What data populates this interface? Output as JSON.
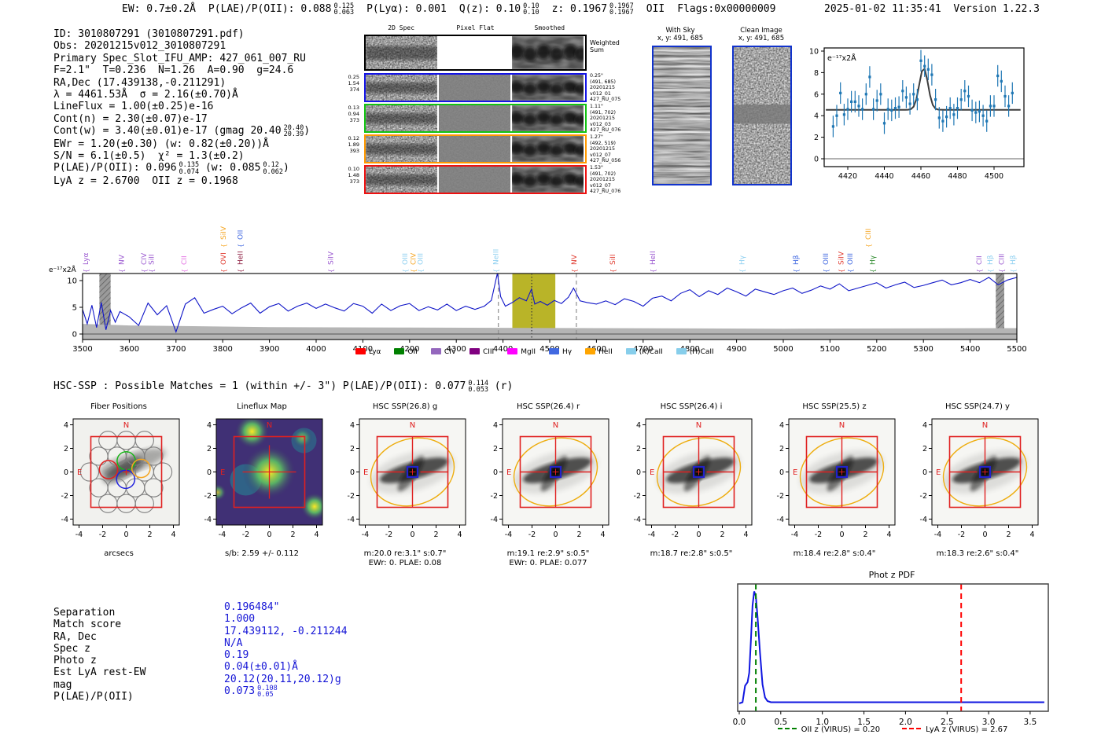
{
  "header": {
    "left_items": [
      {
        "t": "EW: 0.7±0.2Å"
      },
      {
        "t": "P(LAE)/P(OII): 0.088",
        "sup": "0.125",
        "sub": "0.063"
      },
      {
        "t": "P(Lyα): 0.001"
      },
      {
        "t": "Q(z): 0.10",
        "sup": "0.10",
        "sub": "0.10"
      },
      {
        "t": "z: 0.1967",
        "sup": "0.1967",
        "sub": "0.1967"
      },
      {
        "t": "OII"
      },
      {
        "t": "Flags:0x00000009"
      }
    ],
    "datetime": "2025-01-02 11:35:41",
    "version": "Version 1.22.3"
  },
  "info": {
    "lines": [
      [
        {
          "t": "ID: 3010807291 (3010807291.pdf)"
        }
      ],
      [
        {
          "t": "Obs: 20201215v012_3010807291"
        }
      ],
      [
        {
          "t": "Primary Spec_Slot_IFU_AMP: 427_061_007_RU"
        }
      ],
      [
        {
          "t": "F=2.1\"  T=0.236  N=1.26  A=0.90  g=24.6"
        }
      ],
      [
        {
          "t": "RA,Dec (17.439138,-0.211291)"
        }
      ],
      [
        {
          "t": "λ = 4461.53Å  σ = 2.16(±0.70)Å"
        }
      ],
      [
        {
          "t": "LineFlux = 1.00(±0.25)e-16"
        }
      ],
      [
        {
          "t": "Cont(n) = 2.30(±0.07)e-17"
        }
      ],
      [
        {
          "t": "Cont(w) = 3.40(±0.01)e-17 (gmag 20.40"
        },
        {
          "sup": "20.40",
          "sub": "20.39"
        },
        {
          "t": ")"
        }
      ],
      [
        {
          "t": "EWr = 1.20(±0.30) (w: 0.82(±0.20))Å"
        }
      ],
      [
        {
          "t": "S/N = 6.1(±0.5)  χ² = 1.3(±0.2)"
        }
      ],
      [
        {
          "t": "P(LAE)/P(OII): 0.096"
        },
        {
          "sup": "0.135",
          "sub": "0.074"
        },
        {
          "t": " (w: 0.085"
        },
        {
          "sup": "0.12",
          "sub": "0.062"
        },
        {
          "t": ")"
        }
      ],
      [
        {
          "t": "LyA z = 2.6700  OII z = 0.1968"
        }
      ]
    ]
  },
  "spec2d": {
    "col_headers": [
      "2D Spec",
      "Pixel Flat",
      "Smoothed"
    ],
    "weighted_label": "Weighted Sum",
    "rows": [
      {
        "color": "#1414e6",
        "left": [
          "0.25",
          "1.54",
          "374"
        ],
        "right": [
          "0.25\"",
          "(491, 685)",
          "20201215",
          "v012_01",
          "427_RU_075"
        ]
      },
      {
        "color": "#12c412",
        "left": [
          "0.13",
          "0.94",
          "373"
        ],
        "right": [
          "1.11\"",
          "(491, 702)",
          "20201215",
          "v012_03",
          "427_RU_076"
        ]
      },
      {
        "color": "#ff9900",
        "left": [
          "0.12",
          "1.89",
          "393"
        ],
        "right": [
          "1.27\"",
          "(492, 519)",
          "20201215",
          "v012_07",
          "427_RU_056"
        ]
      },
      {
        "color": "#ee1111",
        "left": [
          "0.10",
          "1.48",
          "373"
        ],
        "right": [
          "1.53\"",
          "(491, 702)",
          "20201215",
          "v012_07",
          "427_RU_076"
        ]
      }
    ]
  },
  "sky_panels": [
    {
      "title": "With Sky",
      "coords": "x, y: 491, 685"
    },
    {
      "title": "Clean Image",
      "coords": "x, y: 491, 685"
    }
  ],
  "hsc_match_line": [
    {
      "t": "HSC-SSP : Possible Matches = 1 (within +/- 3\")  P(LAE)/P(OII): 0.077"
    },
    {
      "sup": "0.114",
      "sub": "0.053"
    },
    {
      "t": " (r)"
    }
  ],
  "cutout_ticks": [
    "-4",
    "-2",
    "0",
    "2",
    "4"
  ],
  "compass": {
    "n": "N",
    "e": "E"
  },
  "cutouts": [
    {
      "title": "Fiber Positions",
      "kind": "fiber",
      "xlabel": "arcsecs",
      "sub": []
    },
    {
      "title": "Lineflux Map",
      "kind": "lineflux",
      "xlabel": "",
      "sub": [
        "s/b: 2.59 +/- 0.112"
      ]
    },
    {
      "title": "HSC SSP(26.8) g",
      "kind": "galaxy",
      "xlabel": "",
      "sub": [
        "m:20.0 re:3.1\" s:0.7\"",
        "EWr: 0. PLAE: 0.08"
      ]
    },
    {
      "title": "HSC SSP(26.4) r",
      "kind": "galaxy",
      "xlabel": "",
      "sub": [
        "m:19.1 re:2.9\" s:0.5\"",
        "EWr: 0. PLAE: 0.077"
      ]
    },
    {
      "title": "HSC SSP(26.4) i",
      "kind": "galaxy",
      "xlabel": "",
      "sub": [
        "m:18.7 re:2.8\" s:0.5\""
      ]
    },
    {
      "title": "HSC SSP(25.5) z",
      "kind": "galaxy",
      "xlabel": "",
      "sub": [
        "m:18.4 re:2.8\" s:0.4\""
      ]
    },
    {
      "title": "HSC SSP(24.7) y",
      "kind": "galaxy",
      "xlabel": "",
      "sub": [
        "m:18.3 re:2.6\" s:0.4\""
      ]
    }
  ],
  "match_table": {
    "labels": [
      "Separation",
      "Match score",
      "RA, Dec",
      "Spec z",
      "Photo z",
      "Est LyA rest-EW",
      "mag",
      "P(LAE)/P(OII)"
    ],
    "values": [
      [
        {
          "t": "0.196484\""
        }
      ],
      [
        {
          "t": "1.000"
        }
      ],
      [
        {
          "t": "17.439112, -0.211244"
        }
      ],
      [
        {
          "t": "N/A"
        }
      ],
      [
        {
          "t": "0.19"
        }
      ],
      [
        {
          "t": "0.04(±0.01)Å"
        }
      ],
      [
        {
          "t": "20.12(20.11,20.12)g"
        }
      ],
      [
        {
          "t": "0.073"
        },
        {
          "sup": "0.108",
          "sub": "0.05"
        }
      ]
    ]
  },
  "chart_data": [
    {
      "id": "line_detail",
      "type": "scatter",
      "ylabel": "e⁻¹⁷x2Å",
      "xticks": [
        4420,
        4440,
        4460,
        4480,
        4500
      ],
      "yticks": [
        0,
        2,
        4,
        6,
        8,
        10
      ],
      "xlim": [
        4407,
        4516
      ],
      "ylim": [
        -0.7,
        10.5
      ],
      "x": [
        4412,
        4414,
        4416,
        4418,
        4420,
        4422,
        4424,
        4426,
        4428,
        4430,
        4432,
        4434,
        4436,
        4438,
        4440,
        4442,
        4444,
        4446,
        4448,
        4450,
        4452,
        4454,
        4456,
        4458,
        4460,
        4462,
        4464,
        4466,
        4468,
        4470,
        4472,
        4474,
        4476,
        4478,
        4480,
        4482,
        4484,
        4486,
        4488,
        4490,
        4492,
        4494,
        4496,
        4498,
        4500,
        4502,
        4504,
        4506,
        4508,
        4510
      ],
      "y": [
        3.0,
        4.0,
        6.1,
        4.1,
        4.6,
        5.3,
        5.3,
        4.9,
        4.6,
        6.0,
        7.6,
        4.6,
        5.4,
        6.0,
        3.3,
        4.6,
        4.5,
        4.7,
        4.8,
        6.3,
        5.7,
        5.1,
        6.0,
        5.5,
        9.1,
        8.6,
        8.3,
        7.8,
        5.5,
        3.8,
        3.5,
        3.9,
        4.7,
        4.1,
        4.7,
        5.5,
        6.3,
        5.8,
        4.5,
        4.3,
        4.4,
        4.0,
        3.5,
        4.9,
        4.9,
        7.7,
        7.2,
        5.8,
        4.9,
        6.1
      ],
      "yerr": 1.0,
      "fit": {
        "center": 4461.5,
        "sigma": 2.4,
        "amplitude": 3.9,
        "baseline": 4.55
      },
      "point_color": "#1f77b4",
      "fit_color": "#3c3c3c"
    },
    {
      "id": "full_spectrum",
      "type": "line",
      "ylabel": "e⁻¹⁷x2Å",
      "xticks": [
        3500,
        3600,
        3700,
        3800,
        3900,
        4000,
        4100,
        4200,
        4300,
        4400,
        4500,
        4600,
        4700,
        4800,
        4900,
        5000,
        5100,
        5200,
        5300,
        5400,
        5500
      ],
      "yticks": [
        0,
        5,
        10
      ],
      "xlim": [
        3490,
        5510
      ],
      "ylim": [
        -1.0,
        11.3
      ],
      "x": [
        3500,
        3510,
        3520,
        3530,
        3540,
        3550,
        3560,
        3570,
        3580,
        3600,
        3620,
        3640,
        3660,
        3680,
        3700,
        3720,
        3740,
        3760,
        3780,
        3800,
        3820,
        3840,
        3860,
        3880,
        3900,
        3920,
        3940,
        3960,
        3980,
        4000,
        4020,
        4040,
        4060,
        4080,
        4100,
        4120,
        4140,
        4160,
        4180,
        4200,
        4220,
        4240,
        4260,
        4280,
        4300,
        4320,
        4340,
        4360,
        4375,
        4388,
        4395,
        4405,
        4420,
        4435,
        4450,
        4461,
        4468,
        4480,
        4495,
        4510,
        4525,
        4540,
        4551,
        4565,
        4580,
        4600,
        4620,
        4640,
        4660,
        4680,
        4700,
        4720,
        4740,
        4760,
        4780,
        4800,
        4820,
        4840,
        4860,
        4880,
        4900,
        4920,
        4940,
        4960,
        4980,
        5000,
        5020,
        5040,
        5060,
        5080,
        5100,
        5120,
        5140,
        5160,
        5180,
        5200,
        5220,
        5240,
        5260,
        5280,
        5300,
        5320,
        5340,
        5360,
        5380,
        5400,
        5420,
        5440,
        5460,
        5480,
        5500
      ],
      "y": [
        4.6,
        1.9,
        5.4,
        1.2,
        5.9,
        0.8,
        4.4,
        2.2,
        4.2,
        3.2,
        1.6,
        5.8,
        3.6,
        5.3,
        0.4,
        5.6,
        6.8,
        3.9,
        4.6,
        5.2,
        3.8,
        4.9,
        5.8,
        3.9,
        5.1,
        5.7,
        4.3,
        5.2,
        5.8,
        4.8,
        5.6,
        4.9,
        4.3,
        5.7,
        5.2,
        3.9,
        5.6,
        4.4,
        5.3,
        5.7,
        4.4,
        5.1,
        4.5,
        5.6,
        4.4,
        5.2,
        4.6,
        5.2,
        6.3,
        11.4,
        7.0,
        5.2,
        5.9,
        6.8,
        6.2,
        8.4,
        5.6,
        6.1,
        5.4,
        6.3,
        5.7,
        6.9,
        8.6,
        6.2,
        5.9,
        5.6,
        6.2,
        5.5,
        6.6,
        6.1,
        5.2,
        6.7,
        7.1,
        6.2,
        7.6,
        8.3,
        7.0,
        8.1,
        7.4,
        8.6,
        7.9,
        7.1,
        8.4,
        7.9,
        7.4,
        8.1,
        8.6,
        7.6,
        8.2,
        9.0,
        8.4,
        9.4,
        8.1,
        8.6,
        9.1,
        9.6,
        8.6,
        9.2,
        9.7,
        8.7,
        9.1,
        9.6,
        10.1,
        9.2,
        9.6,
        10.2,
        9.6,
        10.6,
        9.2,
        10.1,
        10.6
      ],
      "noise_floor": {
        "x": [
          3500,
          3600,
          3700,
          3900,
          4200,
          4600,
          5000,
          5500
        ],
        "y": [
          1.9,
          1.6,
          1.5,
          1.3,
          1.2,
          1.1,
          1.0,
          1.1
        ]
      },
      "bands": [
        {
          "x0": 3536,
          "x1": 3560,
          "style": "hatched"
        },
        {
          "x0": 4420,
          "x1": 4512,
          "style": "yellow"
        },
        {
          "x0": 5455,
          "x1": 5473,
          "style": "hatched"
        }
      ],
      "vlines": [
        {
          "x": 4461.5,
          "style": "dotted",
          "color": "#333333"
        },
        {
          "x": 4390,
          "style": "dashed",
          "color": "#909090"
        },
        {
          "x": 4557,
          "style": "dashed",
          "color": "#909090"
        }
      ],
      "line_labels": [
        {
          "wl": 3512,
          "label": "Lyα",
          "color": "#9b59d0",
          "row": 0
        },
        {
          "wl": 3588,
          "label": "NV",
          "color": "#9b59d0",
          "row": 0
        },
        {
          "wl": 3636,
          "label": "CIV",
          "color": "#9b59d0",
          "row": 0
        },
        {
          "wl": 3652,
          "label": "SiII",
          "color": "#9b59d0",
          "row": 0
        },
        {
          "wl": 3722,
          "label": "CII",
          "color": "#e36ee3",
          "row": 0
        },
        {
          "wl": 3806,
          "label": "OVI",
          "color": "#e03c31",
          "row": 0
        },
        {
          "wl": 3806,
          "label": "SiIV",
          "color": "#f5a623",
          "row": 1
        },
        {
          "wl": 3843,
          "label": "HeII",
          "color": "#8e2043",
          "row": 0
        },
        {
          "wl": 3843,
          "label": "OII",
          "color": "#4169e1",
          "row": 1
        },
        {
          "wl": 4036,
          "label": "SiIV",
          "color": "#9b59d0",
          "row": 0
        },
        {
          "wl": 4195,
          "label": "OIII",
          "color": "#8fd0f0",
          "row": 0
        },
        {
          "wl": 4213,
          "label": "CIV",
          "color": "#f5a623",
          "row": 0
        },
        {
          "wl": 4228,
          "label": "OIII",
          "color": "#8fd0f0",
          "row": 0
        },
        {
          "wl": 4390,
          "label": "NeIII",
          "color": "#8fd0f0",
          "row": 0
        },
        {
          "wl": 4557,
          "label": "NV",
          "color": "#e03c31",
          "row": 0
        },
        {
          "wl": 4640,
          "label": "SiII",
          "color": "#e03c31",
          "row": 0
        },
        {
          "wl": 4726,
          "label": "HeII",
          "color": "#9b59d0",
          "row": 0
        },
        {
          "wl": 4917,
          "label": "Hγ",
          "color": "#8fd0f0",
          "row": 0
        },
        {
          "wl": 5032,
          "label": "Hβ",
          "color": "#4169e1",
          "row": 0
        },
        {
          "wl": 5096,
          "label": "OIII",
          "color": "#4169e1",
          "row": 0
        },
        {
          "wl": 5129,
          "label": "SiIV",
          "color": "#e03c31",
          "row": 0
        },
        {
          "wl": 5148,
          "label": "OIII",
          "color": "#4169e1",
          "row": 0
        },
        {
          "wl": 5187,
          "label": "CIII",
          "color": "#f5a623",
          "row": 1
        },
        {
          "wl": 5196,
          "label": "Hγ",
          "color": "#2e8b2e",
          "row": 0
        },
        {
          "wl": 5424,
          "label": "CII",
          "color": "#9b59d0",
          "row": 0
        },
        {
          "wl": 5448,
          "label": "Hβ",
          "color": "#8fd0f0",
          "row": 0
        },
        {
          "wl": 5472,
          "label": "CIII",
          "color": "#9b59d0",
          "row": 0
        },
        {
          "wl": 5497,
          "label": "Hβ",
          "color": "#8fd0f0",
          "row": 0
        }
      ],
      "legend": [
        {
          "label": "Lyα",
          "color": "#ff0000"
        },
        {
          "label": "OII",
          "color": "#008000"
        },
        {
          "label": "CIV",
          "color": "#9467bd"
        },
        {
          "label": "CIII",
          "color": "#800080"
        },
        {
          "label": "MgII",
          "color": "#ff00ff"
        },
        {
          "label": "Hγ",
          "color": "#4169e1"
        },
        {
          "label": "HeII",
          "color": "#ffa500"
        },
        {
          "label": "(K)CaII",
          "color": "#87ceeb"
        },
        {
          "label": "(H)CaII",
          "color": "#87ceeb"
        }
      ],
      "line_color": "#1016c8",
      "band_yellow_color": "#b9b428"
    },
    {
      "id": "photz_pdf",
      "type": "line",
      "title": "Phot z PDF",
      "xticks": [
        0.0,
        0.5,
        1.0,
        1.5,
        2.0,
        2.5,
        3.0,
        3.5
      ],
      "xlim": [
        0.0,
        3.67
      ],
      "x": [
        0,
        0.04,
        0.07,
        0.1,
        0.12,
        0.14,
        0.16,
        0.18,
        0.2,
        0.22,
        0.25,
        0.28,
        0.31,
        0.34,
        0.38,
        0.45,
        0.6,
        1.0,
        1.5,
        2.0,
        2.5,
        3.0,
        3.5,
        3.67
      ],
      "y": [
        0.02,
        0.03,
        0.17,
        0.2,
        0.28,
        0.55,
        0.85,
        0.97,
        0.93,
        0.75,
        0.45,
        0.18,
        0.07,
        0.04,
        0.03,
        0.03,
        0.03,
        0.03,
        0.03,
        0.03,
        0.03,
        0.03,
        0.03,
        0.03
      ],
      "vlines": [
        {
          "x": 0.2,
          "color": "#008000",
          "style": "dashed",
          "label": "OII z (VIRUS) = 0.20"
        },
        {
          "x": 2.67,
          "color": "#ff0000",
          "style": "dashed",
          "label": "LyA z (VIRUS) = 2.67"
        }
      ],
      "line_color": "#1016e0"
    }
  ]
}
